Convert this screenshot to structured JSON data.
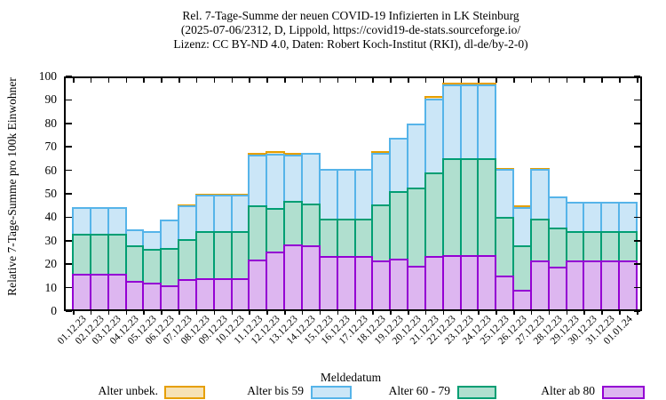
{
  "title": {
    "line1": "Rel. 7-Tage-Summe der neuen COVID-19 Infizierten in LK Steinburg",
    "line2": "(2025-07-06/2312, D, Lippold, https://covid19-de-stats.sourceforge.io/",
    "line3": "Lizenz: CC BY-ND 4.0, Daten: Robert Koch-Institut (RKI), dl-de/by-2-0)"
  },
  "y_axis": {
    "label": "Relative 7-Tage-Summe pro 100k Einwohner",
    "ticks": [
      0,
      10,
      20,
      30,
      40,
      50,
      60,
      70,
      80,
      90,
      100
    ]
  },
  "x_axis": {
    "label": "Meldedatum"
  },
  "legend": [
    {
      "label": "Alter unbek.",
      "color": "#e69f00",
      "fill": "#f6e2b6"
    },
    {
      "label": "Alter bis 59",
      "color": "#56b4e9",
      "fill": "#cbe6f7"
    },
    {
      "label": "Alter 60 - 79",
      "color": "#009e73",
      "fill": "#b0dfcf"
    },
    {
      "label": "Alter ab 80",
      "color": "#9400d3",
      "fill": "#ddb6f0"
    }
  ],
  "chart_data": {
    "type": "bar",
    "stacked": true,
    "title": "Rel. 7-Tage-Summe der neuen COVID-19 Infizierten in LK Steinburg",
    "xlabel": "Meldedatum",
    "ylabel": "Relative 7-Tage-Summe pro 100k Einwohner",
    "ylim": [
      0,
      100
    ],
    "grid": false,
    "legend_position": "bottom",
    "categories": [
      "01.12.23",
      "02.12.23",
      "03.12.23",
      "04.12.23",
      "05.12.23",
      "06.12.23",
      "07.12.23",
      "08.12.23",
      "09.12.23",
      "10.12.23",
      "11.12.23",
      "12.12.23",
      "13.12.23",
      "14.12.23",
      "15.12.23",
      "16.12.23",
      "17.12.23",
      "18.12.23",
      "19.12.23",
      "20.12.23",
      "21.12.23",
      "22.12.23",
      "23.12.23",
      "24.12.23",
      "25.12.23",
      "26.12.23",
      "27.12.23",
      "28.12.23",
      "29.12.23",
      "30.12.23",
      "31.12.23",
      "01.01.24"
    ],
    "series": [
      {
        "name": "Alter ab 80",
        "color": "#9400d3",
        "fill": "#ddb6f0",
        "values": [
          16,
          16,
          16,
          13,
          12,
          11,
          13.5,
          14,
          14,
          14,
          22,
          25.5,
          28.5,
          28,
          23.5,
          23.5,
          23.5,
          21.5,
          22.5,
          19.5,
          23.5,
          24,
          24,
          24,
          15,
          9,
          21.5,
          19,
          21.5,
          21.5,
          21.5,
          21.5
        ]
      },
      {
        "name": "Alter 60 - 79",
        "color": "#009e73",
        "fill": "#b0dfcf",
        "values": [
          17,
          17,
          17,
          15,
          14.5,
          16,
          17,
          20,
          20,
          20,
          23,
          18.5,
          18.5,
          18,
          16,
          16,
          16,
          24,
          28.5,
          33,
          35.5,
          41,
          41,
          41,
          25,
          19,
          18,
          16.5,
          12.5,
          12.5,
          12.5,
          12.5
        ]
      },
      {
        "name": "Alter bis 59",
        "color": "#56b4e9",
        "fill": "#cbe6f7",
        "values": [
          11.5,
          11.5,
          11.5,
          7,
          7.5,
          12,
          14.5,
          15.5,
          15.5,
          15.5,
          21.5,
          23,
          19.5,
          21.5,
          21,
          21,
          21,
          22,
          23,
          27.5,
          31.5,
          31.5,
          31.5,
          31.5,
          20.5,
          16.5,
          21,
          13.5,
          12.5,
          12.5,
          12.5,
          12.5
        ]
      },
      {
        "name": "Alter unbek.",
        "color": "#e69f00",
        "fill": "#f6e2b6",
        "values": [
          0,
          0,
          0,
          0,
          0,
          0,
          0.5,
          0.5,
          0.5,
          0.5,
          1,
          1,
          1,
          0,
          0,
          0,
          0,
          0.5,
          0,
          0,
          1,
          1,
          1,
          1,
          0.5,
          0.5,
          0.5,
          0,
          0,
          0,
          0,
          0
        ]
      }
    ]
  }
}
